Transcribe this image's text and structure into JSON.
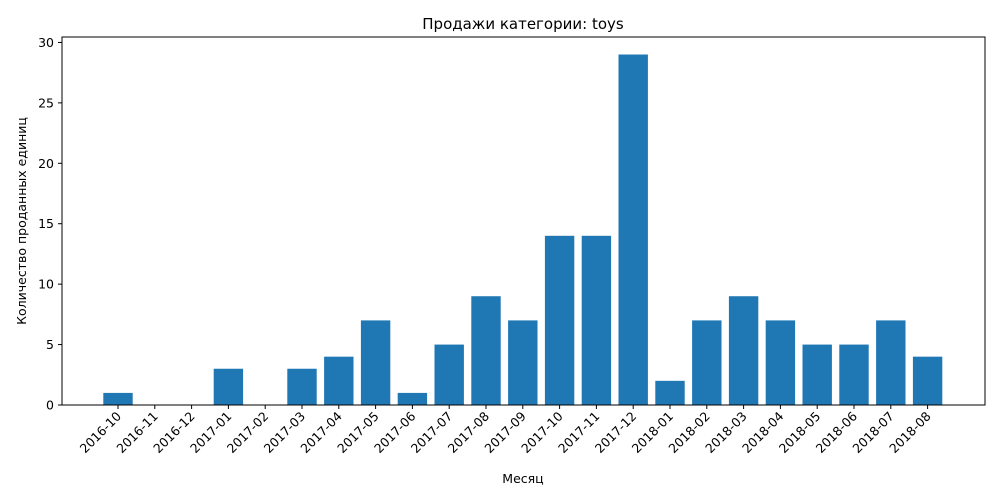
{
  "chart_data": {
    "type": "bar",
    "title": "Продажи категории: toys",
    "xlabel": "Месяц",
    "ylabel": "Количество проданных единиц",
    "categories": [
      "2016-10",
      "2016-11",
      "2016-12",
      "2017-01",
      "2017-02",
      "2017-03",
      "2017-04",
      "2017-05",
      "2017-06",
      "2017-07",
      "2017-08",
      "2017-09",
      "2017-10",
      "2017-11",
      "2017-12",
      "2018-01",
      "2018-02",
      "2018-03",
      "2018-04",
      "2018-05",
      "2018-06",
      "2018-07",
      "2018-08"
    ],
    "values": [
      1,
      0,
      0,
      3,
      0,
      3,
      4,
      7,
      1,
      5,
      9,
      7,
      14,
      14,
      29,
      2,
      7,
      9,
      7,
      5,
      5,
      7,
      4
    ],
    "ylim": [
      0,
      30.45
    ],
    "yticks": [
      0,
      5,
      10,
      15,
      20,
      25,
      30
    ],
    "grid": false,
    "bar_color": "#1f77b4"
  }
}
